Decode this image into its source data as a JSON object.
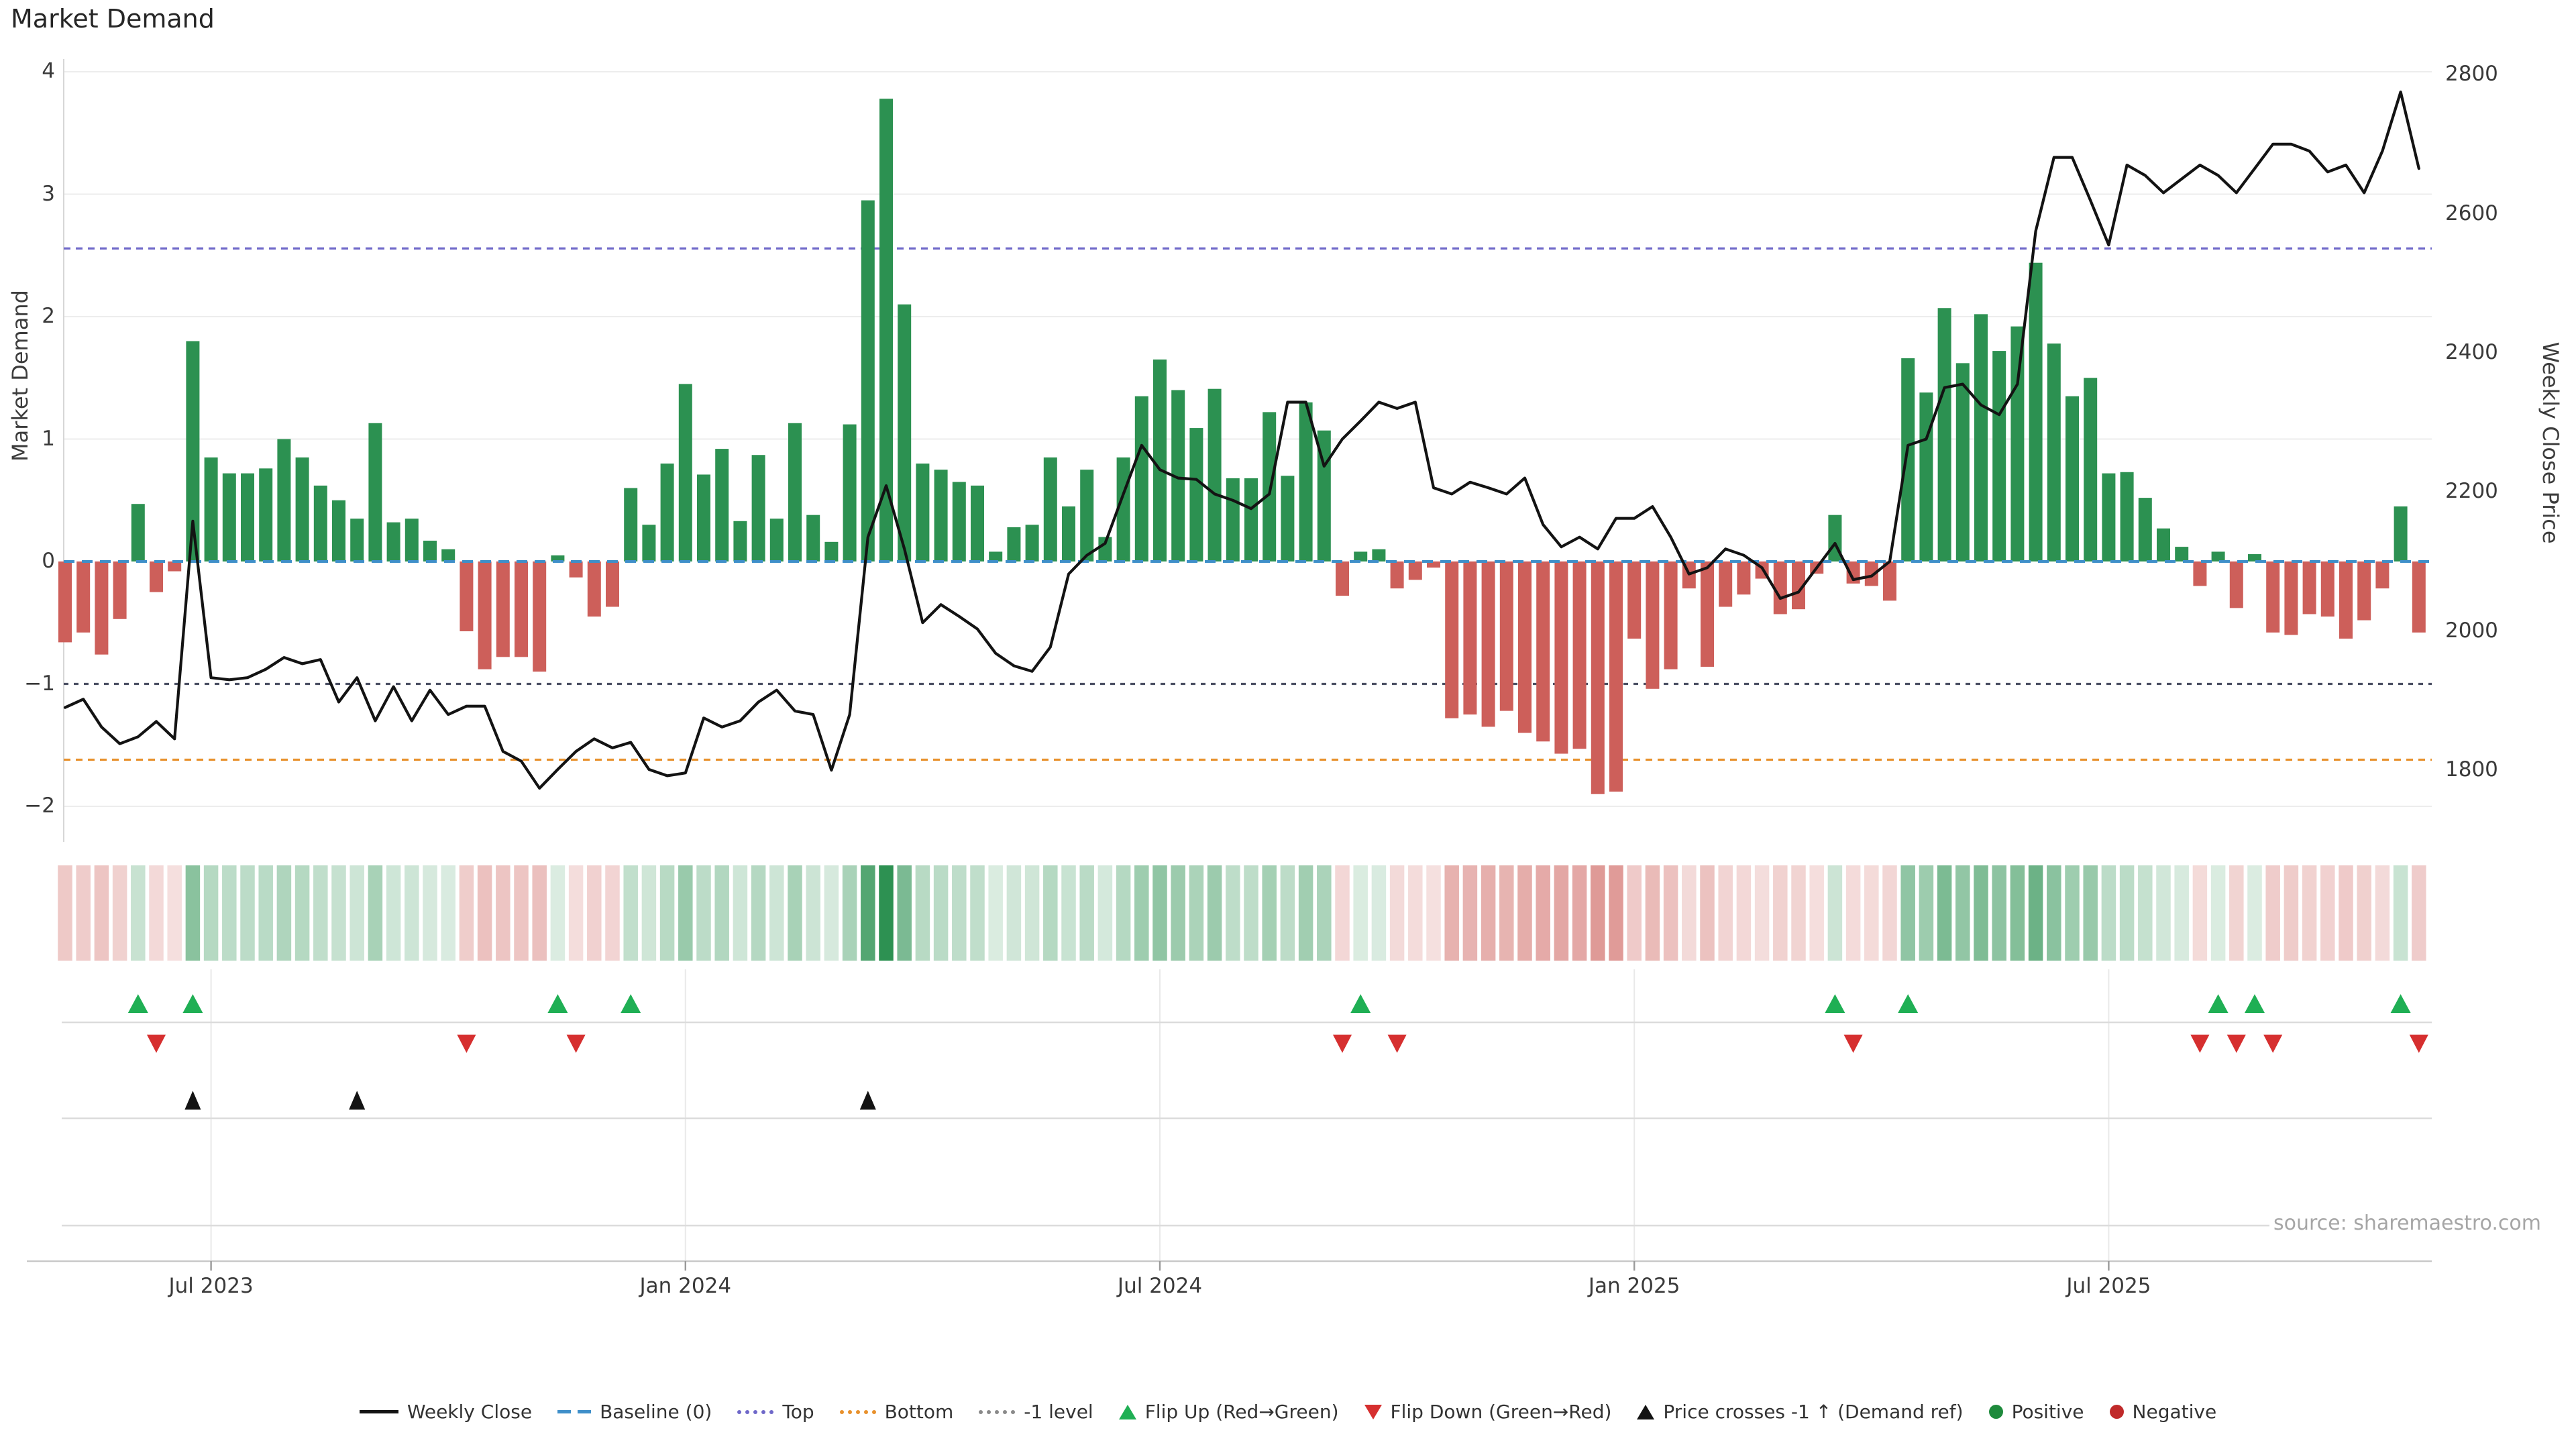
{
  "title": "Market Demand",
  "source": "source: sharemaestro.com",
  "axes": {
    "left_label": "Market Demand",
    "right_label": "Weekly Close Price",
    "left_ticks": [
      {
        "label": "4",
        "value": 4
      },
      {
        "label": "3",
        "value": 3
      },
      {
        "label": "2",
        "value": 2
      },
      {
        "label": "1",
        "value": 1
      },
      {
        "label": "0",
        "value": 0
      },
      {
        "label": "−1",
        "value": -1
      },
      {
        "label": "−2",
        "value": -2
      }
    ],
    "right_ticks": [
      {
        "label": "2800",
        "value": 2800
      },
      {
        "label": "2600",
        "value": 2600
      },
      {
        "label": "2400",
        "value": 2400
      },
      {
        "label": "2200",
        "value": 2200
      },
      {
        "label": "2000",
        "value": 2000
      },
      {
        "label": "1800",
        "value": 1800
      }
    ],
    "x_ticks": [
      {
        "label": "Jul 2023",
        "week": 8
      },
      {
        "label": "Jan 2024",
        "week": 34
      },
      {
        "label": "Jul 2024",
        "week": 60
      },
      {
        "label": "Jan 2025",
        "week": 86
      },
      {
        "label": "Jul 2025",
        "week": 112
      }
    ]
  },
  "chart_data": {
    "type": "bar",
    "subtype": "weekly bar + line combo with signal heatmap and event markers",
    "title": "Market Demand",
    "xlabel": "",
    "ylabel_left": "Market Demand",
    "ylabel_right": "Weekly Close Price",
    "n_weeks": 130,
    "ylim_left": [
      -2.3,
      4.1
    ],
    "ylim_right": [
      1697,
      2822
    ],
    "grid": true,
    "legend_position": "bottom-center",
    "series": [
      {
        "name": "Market Demand",
        "type": "bar",
        "axis": "left",
        "values": [
          -0.66,
          -0.58,
          -0.76,
          -0.47,
          0.47,
          -0.25,
          -0.08,
          1.8,
          0.85,
          0.72,
          0.72,
          0.76,
          1.0,
          0.85,
          0.62,
          0.5,
          0.35,
          1.13,
          0.32,
          0.35,
          0.17,
          0.1,
          -0.57,
          -0.88,
          -0.78,
          -0.78,
          -0.9,
          0.05,
          -0.13,
          -0.45,
          -0.37,
          0.6,
          0.3,
          0.8,
          1.45,
          0.71,
          0.92,
          0.33,
          0.87,
          0.35,
          1.13,
          0.38,
          0.16,
          1.12,
          2.95,
          3.78,
          2.1,
          0.8,
          0.75,
          0.65,
          0.62,
          0.08,
          0.28,
          0.3,
          0.85,
          0.45,
          0.75,
          0.2,
          0.85,
          1.35,
          1.65,
          1.4,
          1.09,
          1.41,
          0.68,
          0.68,
          1.22,
          0.7,
          1.3,
          1.07,
          -0.28,
          0.08,
          0.1,
          -0.22,
          -0.15,
          -0.05,
          -1.28,
          -1.25,
          -1.35,
          -1.22,
          -1.4,
          -1.47,
          -1.57,
          -1.53,
          -1.9,
          -1.88,
          -0.63,
          -1.04,
          -0.88,
          -0.22,
          -0.86,
          -0.37,
          -0.27,
          -0.14,
          -0.43,
          -0.39,
          -0.1,
          0.38,
          -0.18,
          -0.2,
          -0.32,
          1.66,
          1.38,
          2.07,
          1.62,
          2.02,
          1.72,
          1.92,
          2.44,
          1.78,
          1.35,
          1.5,
          0.72,
          0.73,
          0.52,
          0.27,
          0.12,
          -0.2,
          0.08,
          -0.38,
          0.06,
          -0.58,
          -0.6,
          -0.43,
          -0.45,
          -0.63,
          -0.48,
          -0.22,
          0.45,
          -0.58
        ]
      },
      {
        "name": "Weekly Close",
        "type": "line",
        "axis": "right",
        "values": [
          1890,
          1902,
          1862,
          1838,
          1848,
          1870,
          1845,
          2158,
          1933,
          1930,
          1933,
          1945,
          1962,
          1953,
          1959,
          1898,
          1933,
          1871,
          1920,
          1871,
          1915,
          1880,
          1892,
          1892,
          1827,
          1813,
          1774,
          1801,
          1827,
          1845,
          1832,
          1840,
          1801,
          1792,
          1796,
          1875,
          1862,
          1871,
          1898,
          1915,
          1885,
          1880,
          1800,
          1880,
          2135,
          2209,
          2118,
          2012,
          2038,
          2021,
          2003,
          1968,
          1950,
          1942,
          1977,
          2082,
          2109,
          2126,
          2197,
          2267,
          2232,
          2220,
          2218,
          2197,
          2188,
          2176,
          2197,
          2329,
          2329,
          2237,
          2276,
          2302,
          2329,
          2320,
          2329,
          2206,
          2197,
          2214,
          2206,
          2197,
          2220,
          2153,
          2121,
          2135,
          2118,
          2162,
          2162,
          2179,
          2135,
          2082,
          2091,
          2118,
          2109,
          2091,
          2047,
          2056,
          2091,
          2126,
          2074,
          2079,
          2100,
          2267,
          2276,
          2350,
          2355,
          2325,
          2311,
          2355,
          2575,
          2681,
          2681,
          2619,
          2555,
          2670,
          2655,
          2630,
          2650,
          2670,
          2655,
          2630,
          2665,
          2700,
          2700,
          2690,
          2660,
          2670,
          2630,
          2690,
          2775,
          2665
        ]
      }
    ],
    "levels": {
      "baseline": 0,
      "minus1_level": -1,
      "top_price": 2550,
      "bottom_price": 1815
    },
    "markers": {
      "flip_up_weeks": [
        4,
        7,
        27,
        31,
        71,
        97,
        101,
        118,
        120,
        128
      ],
      "flip_down_weeks": [
        5,
        22,
        28,
        70,
        73,
        98,
        117,
        119,
        121,
        129
      ],
      "price_cross_minus1_weeks": [
        7,
        16,
        44
      ]
    },
    "heatmap": {
      "note": "one cell per week, color = sign of Market Demand (green positive, red negative), opacity scaled by magnitude"
    }
  },
  "legend": [
    {
      "label": "Weekly Close",
      "swatch": "line",
      "color": "#131313"
    },
    {
      "label": "Baseline (0)",
      "swatch": "dashes",
      "color": "#3f8fc9"
    },
    {
      "label": "Top",
      "swatch": "dots",
      "color": "#6f68c9"
    },
    {
      "label": "Bottom",
      "swatch": "dots",
      "color": "#e8912d"
    },
    {
      "label": "-1 level",
      "swatch": "dots",
      "color": "#8a8a8a"
    },
    {
      "label": "Flip Up (Red→Green)",
      "swatch": "tri-up",
      "color": "#1faf54"
    },
    {
      "label": "Flip Down (Green→Red)",
      "swatch": "tri-down",
      "color": "#d62f2f"
    },
    {
      "label": "Price crosses -1 ↑ (Demand ref)",
      "swatch": "tri-up",
      "color": "#131313"
    },
    {
      "label": "Positive",
      "swatch": "circle",
      "color": "#1e8a3c"
    },
    {
      "label": "Negative",
      "swatch": "circle",
      "color": "#c02a2a"
    }
  ],
  "colors": {
    "bar_positive": "#2c9151",
    "bar_negative": "#cd5f5a",
    "price_line": "#131313",
    "baseline": "#3f8fc9",
    "top_line": "#6f68c9",
    "bottom_line": "#e8912d",
    "minus1_line": "#4b4f63",
    "grid": "#ededed",
    "spine": "#d7d7d7",
    "heat_positive_rgb": "44,145,81",
    "heat_negative_rgb": "205,95,90"
  }
}
